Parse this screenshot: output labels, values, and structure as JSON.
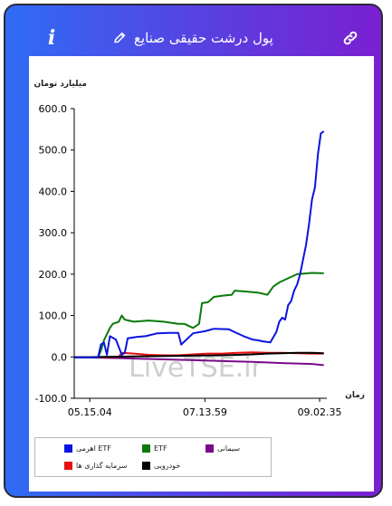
{
  "header": {
    "info_label": "i",
    "title": "پول درشت حقیقی صنایع"
  },
  "watermark": "LiveTSE.ir",
  "chart_data": {
    "type": "line",
    "ylabel": "میلیارد تومان",
    "xlabel": "زمان",
    "ylim": [
      -100,
      600
    ],
    "yticks": [
      600,
      500,
      400,
      300,
      200,
      100,
      0,
      -100
    ],
    "ytick_labels": [
      "600.0",
      "500.0",
      "400.0",
      "300.0",
      "200.0",
      "100.0",
      "0.0",
      "-100.0"
    ],
    "x_range_minutes": [
      550,
      635
    ],
    "xticks": [
      {
        "label": "05.15.04",
        "t": 555.25
      },
      {
        "label": "07.13.59",
        "t": 593.98
      },
      {
        "label": "09.02.35",
        "t": 632.58
      }
    ],
    "series": [
      {
        "name": "اهرمی ETF",
        "color": "#0a14e0",
        "points": [
          [
            550,
            -1
          ],
          [
            558,
            -1
          ],
          [
            559,
            30
          ],
          [
            560,
            35
          ],
          [
            561,
            5
          ],
          [
            562,
            50
          ],
          [
            564,
            42
          ],
          [
            566,
            5
          ],
          [
            567,
            10
          ],
          [
            568,
            45
          ],
          [
            571,
            48
          ],
          [
            574,
            50
          ],
          [
            578,
            57
          ],
          [
            582,
            58
          ],
          [
            585,
            58
          ],
          [
            586,
            30
          ],
          [
            590,
            57
          ],
          [
            594,
            62
          ],
          [
            597,
            68
          ],
          [
            602,
            67
          ],
          [
            604,
            60
          ],
          [
            607,
            50
          ],
          [
            610,
            42
          ],
          [
            612,
            40
          ],
          [
            613,
            38
          ],
          [
            616,
            35
          ],
          [
            618,
            60
          ],
          [
            619,
            85
          ],
          [
            620,
            95
          ],
          [
            621,
            90
          ],
          [
            622,
            125
          ],
          [
            623,
            135
          ],
          [
            624,
            160
          ],
          [
            625,
            175
          ],
          [
            626,
            200
          ],
          [
            627,
            235
          ],
          [
            628,
            270
          ],
          [
            629,
            320
          ],
          [
            630,
            380
          ],
          [
            631,
            410
          ],
          [
            632,
            490
          ],
          [
            633,
            540
          ],
          [
            634,
            545
          ]
        ]
      },
      {
        "name": "ETF",
        "color": "#0a7a0a",
        "points": [
          [
            550,
            -1
          ],
          [
            558,
            -1
          ],
          [
            559,
            15
          ],
          [
            560,
            40
          ],
          [
            562,
            70
          ],
          [
            563,
            80
          ],
          [
            565,
            85
          ],
          [
            566,
            100
          ],
          [
            567,
            90
          ],
          [
            570,
            85
          ],
          [
            575,
            88
          ],
          [
            580,
            85
          ],
          [
            585,
            80
          ],
          [
            587,
            80
          ],
          [
            590,
            70
          ],
          [
            592,
            80
          ],
          [
            593,
            130
          ],
          [
            595,
            132
          ],
          [
            597,
            145
          ],
          [
            600,
            148
          ],
          [
            603,
            150
          ],
          [
            604,
            160
          ],
          [
            608,
            158
          ],
          [
            612,
            155
          ],
          [
            615,
            150
          ],
          [
            617,
            170
          ],
          [
            619,
            180
          ],
          [
            622,
            190
          ],
          [
            625,
            200
          ],
          [
            630,
            203
          ],
          [
            634,
            202
          ]
        ]
      },
      {
        "name": "سیمانی",
        "color": "#7a0a8a",
        "points": [
          [
            550,
            -1
          ],
          [
            560,
            -2
          ],
          [
            570,
            -4
          ],
          [
            580,
            -6
          ],
          [
            590,
            -8
          ],
          [
            600,
            -10
          ],
          [
            610,
            -12
          ],
          [
            620,
            -15
          ],
          [
            630,
            -17
          ],
          [
            634,
            -20
          ]
        ]
      },
      {
        "name": "سرمایه گذاری ها",
        "color": "#e81010",
        "points": [
          [
            550,
            -1
          ],
          [
            565,
            0
          ],
          [
            566,
            10
          ],
          [
            570,
            8
          ],
          [
            575,
            5
          ],
          [
            580,
            4
          ],
          [
            585,
            4
          ],
          [
            590,
            6
          ],
          [
            595,
            8
          ],
          [
            600,
            8
          ],
          [
            605,
            10
          ],
          [
            610,
            11
          ],
          [
            615,
            10
          ],
          [
            620,
            10
          ],
          [
            625,
            9
          ],
          [
            630,
            8
          ],
          [
            634,
            8
          ]
        ]
      },
      {
        "name": "خودرویی",
        "color": "#000000",
        "points": [
          [
            550,
            -1
          ],
          [
            560,
            0
          ],
          [
            570,
            1
          ],
          [
            580,
            2
          ],
          [
            590,
            3
          ],
          [
            600,
            4
          ],
          [
            610,
            6
          ],
          [
            615,
            8
          ],
          [
            620,
            9
          ],
          [
            625,
            10
          ],
          [
            630,
            10
          ],
          [
            634,
            9
          ]
        ]
      }
    ]
  }
}
